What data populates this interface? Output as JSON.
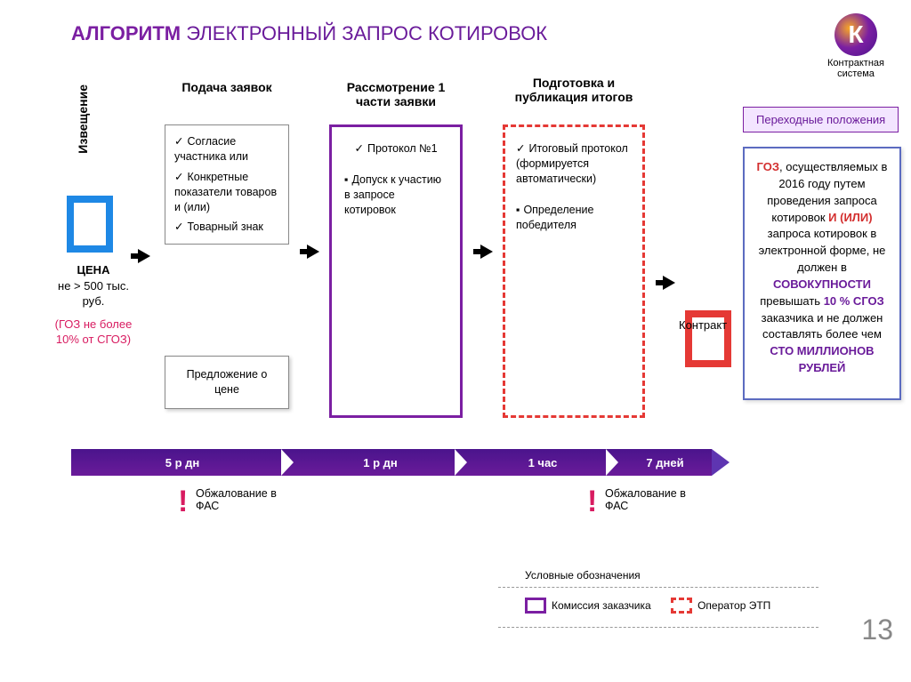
{
  "title": {
    "bold": "АЛГОРИТМ",
    "rest": "ЭЛЕКТРОННЫЙ ЗАПРОС КОТИРОВОК"
  },
  "logo": {
    "letter": "К",
    "caption": "Контрактная\nсистема"
  },
  "left": {
    "vlabel": "Извещение",
    "price_title": "ЦЕНА",
    "price_line": "не > 500 тыс. руб.",
    "goz": "(ГОЗ не более 10% от СГОЗ)"
  },
  "columns": {
    "c1_head": "Подача заявок",
    "c1_items": [
      "Согласие участника или",
      "Конкретные показатели товаров и (или)",
      "Товарный знак"
    ],
    "c1_offer": "Предложение о цене",
    "c2_head": "Рассмотрение 1 части заявки",
    "c2_items": [
      "Протокол №1",
      "Допуск к участию в запросе котировок"
    ],
    "c3_head": "Подготовка и публикация итогов",
    "c3_items": [
      "Итоговый протокол (формируется автоматически)",
      "Определение победителя"
    ],
    "contract": "Контракт"
  },
  "timeline": [
    "5 р дн",
    "1 р дн",
    "1 час",
    "7 дней"
  ],
  "appeals": {
    "fas1": "Обжалование в ФАС",
    "fas2": "Обжалование в ФАС"
  },
  "transitional": {
    "button": "Переходные положения",
    "para1a": "ГОЗ",
    "para1b": ", осуществляемых в 2016 году путем проведения запроса котировок ",
    "para1c": "И (ИЛИ)",
    "para1d": " запроса котировок в электронной форме, не должен в ",
    "para1e": "СОВОКУПНОСТИ",
    "para1f": " превышать ",
    "para1g": "10 % СГОЗ",
    "para1h": " заказчика и не должен составлять более чем ",
    "para1i": "СТО МИЛЛИОНОВ РУБЛЕЙ"
  },
  "legend": {
    "head": "Условные обозначения",
    "a": "Комиссия заказчика",
    "b": "Оператор ЭТП"
  },
  "pagen": "13",
  "colors": {
    "purple": "#7b1fa2",
    "purple_dk": "#4a148c",
    "red": "#e53935",
    "blue": "#1e88e5",
    "pink": "#d81b60"
  }
}
